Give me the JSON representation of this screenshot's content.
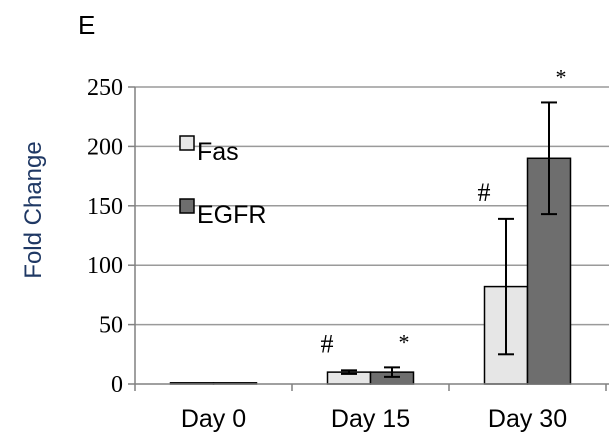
{
  "panel_label": "E",
  "colors": {
    "fas_fill": "#e6e6e6",
    "egfr_fill": "#6e6e6e",
    "axis_title": "#1f3864",
    "grid": "#9a9a9a",
    "bar_stroke": "#000000"
  },
  "chart_data": {
    "type": "bar",
    "title": "",
    "xlabel": "",
    "ylabel": "Fold Change",
    "ylim": [
      0,
      250
    ],
    "yticks": [
      0,
      50,
      100,
      150,
      200,
      250
    ],
    "grid": true,
    "legend_position": "left, inside plot",
    "categories": [
      "Day 0",
      "Day 15",
      "Day 30"
    ],
    "series": [
      {
        "name": "Fas",
        "color": "#e6e6e6",
        "values": [
          1,
          10,
          82
        ],
        "errors": [
          0,
          1.5,
          57
        ],
        "annotations": [
          "",
          "#",
          "#"
        ]
      },
      {
        "name": "EGFR",
        "color": "#6e6e6e",
        "values": [
          1,
          10,
          190
        ],
        "errors": [
          0,
          4,
          47
        ],
        "annotations": [
          "",
          "*",
          "*"
        ]
      }
    ]
  }
}
